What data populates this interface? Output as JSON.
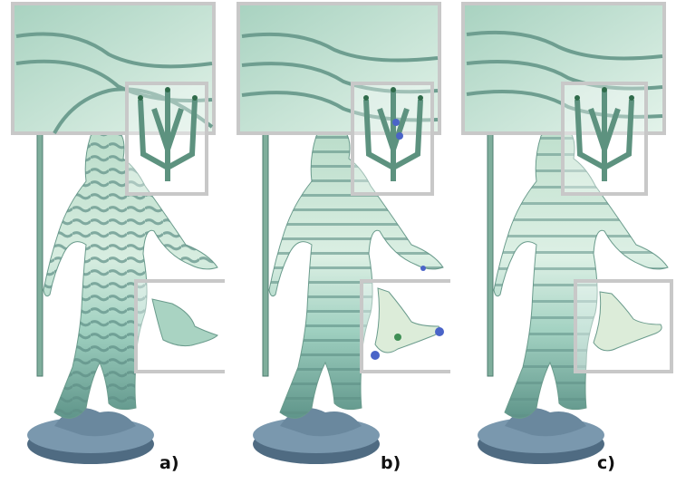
{
  "figure": {
    "panels": [
      {
        "id": "a",
        "label": "a)",
        "stripe_style": "irregular",
        "handles": false
      },
      {
        "id": "b",
        "label": "b)",
        "stripe_style": "regular",
        "handles": true
      },
      {
        "id": "c",
        "label": "c)",
        "stripe_style": "smooth",
        "handles": false
      }
    ]
  },
  "colors": {
    "body_light": "#dff0e6",
    "body_mid": "#9ccbb8",
    "body_dark": "#5f958a",
    "stripe": "#5e8f86",
    "base": "#7a98ae",
    "base_dark": "#4f6b82",
    "inset_border": "#c8c8c8",
    "handle_blue": "#4a64c8",
    "handle_green": "#3f8f55",
    "trident_dot": "#2f6b4a"
  }
}
